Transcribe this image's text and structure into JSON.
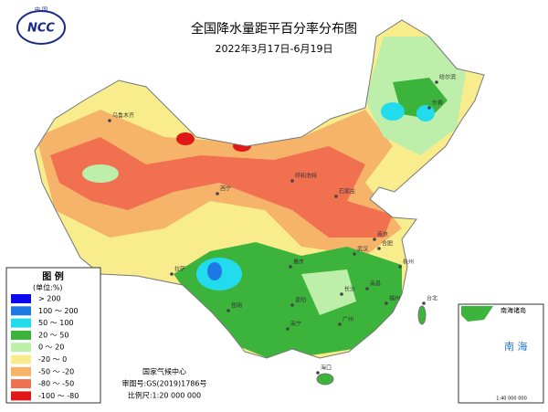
{
  "header": {
    "title": "全国降水量距平百分率分布图",
    "subtitle": "2022年3月17日-6月19日"
  },
  "logo": {
    "top": "中 国",
    "name": "NCC"
  },
  "legend": {
    "title": "图 例",
    "unit": "(单位:%)",
    "items": [
      {
        "label": "> 200",
        "color": "#0a0af0"
      },
      {
        "label": "100 ～ 200",
        "color": "#1e78e6"
      },
      {
        "label": "50 ～ 100",
        "color": "#22dcee"
      },
      {
        "label": "20 ～ 50",
        "color": "#3cb43c"
      },
      {
        "label": "0 ～ 20",
        "color": "#bdeeaa"
      },
      {
        "label": "-20 ～ 0",
        "color": "#f8ec8c"
      },
      {
        "label": "-50 ～ -20",
        "color": "#f6b46a"
      },
      {
        "label": "-80 ～ -50",
        "color": "#f07050"
      },
      {
        "label": "-100 ～ -80",
        "color": "#e01818"
      }
    ]
  },
  "footer": {
    "org": "国家气候中心",
    "approval": "审图号:GS(2019)1786号",
    "scale": "比例尺:1:20 000 000"
  },
  "inset": {
    "title": "南海诸岛",
    "sea": "南 海",
    "scale": "1:40 000 000"
  },
  "cities": [
    "哈尔滨",
    "长春",
    "乌鲁木齐",
    "呼和浩特",
    "石家庄",
    "拉萨",
    "西宁",
    "重庆",
    "武汉",
    "南京",
    "合肥",
    "杭州",
    "长沙",
    "南昌",
    "贵阳",
    "昆明",
    "南宁",
    "广州",
    "福州",
    "台北",
    "海口"
  ]
}
